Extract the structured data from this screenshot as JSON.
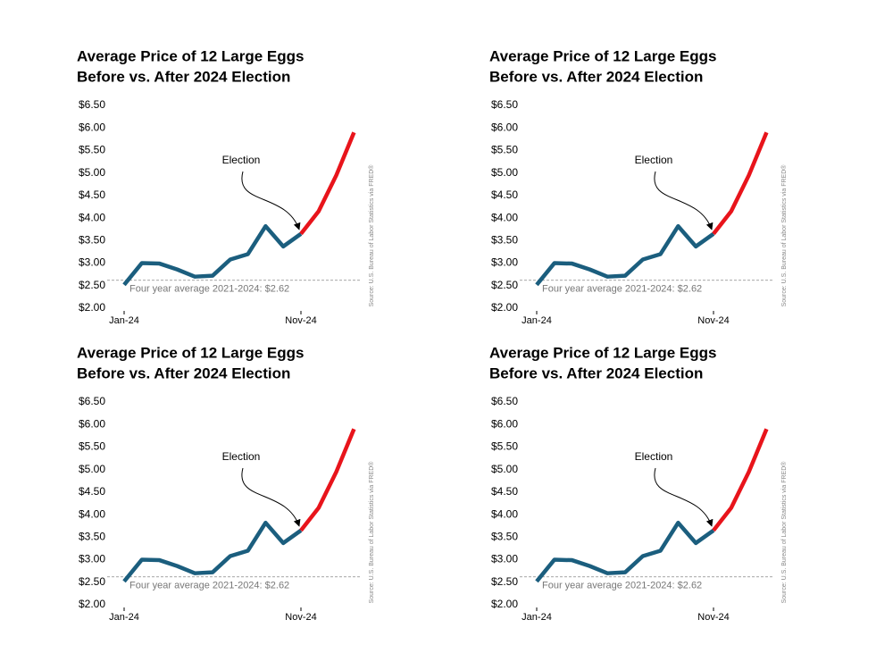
{
  "chart_data": [
    {
      "type": "line",
      "title": [
        "Average Price of 12 Large Eggs",
        "Before vs. After 2024 Election"
      ],
      "categories": [
        "Jan-24",
        null,
        null,
        null,
        null,
        null,
        null,
        null,
        null,
        null,
        "Nov-24",
        null,
        null,
        null
      ],
      "series": [
        {
          "color": "#1b5e7e",
          "values": [
            2.52,
            3.0,
            2.99,
            2.86,
            2.7,
            2.72,
            3.08,
            3.2,
            3.82,
            3.37,
            3.65,
            null,
            null,
            null
          ]
        },
        {
          "color": "#e8141b",
          "values": [
            null,
            null,
            null,
            null,
            null,
            null,
            null,
            null,
            null,
            null,
            3.65,
            4.15,
            4.95,
            5.9
          ]
        }
      ],
      "ylim": [
        2,
        6.5
      ],
      "yticks": [
        {
          "value": 2,
          "label": "$2.00"
        },
        {
          "value": 2.5,
          "label": "$2.50"
        },
        {
          "value": 3,
          "label": "$3.00"
        },
        {
          "value": 3.5,
          "label": "$3.50"
        },
        {
          "value": 4,
          "label": "$4.00"
        },
        {
          "value": 4.5,
          "label": "$4.50"
        },
        {
          "value": 5,
          "label": "$5.00"
        },
        {
          "value": 5.5,
          "label": "$5.50"
        },
        {
          "value": 6,
          "label": "$6.00"
        },
        {
          "value": 6.5,
          "label": "$6.50"
        }
      ],
      "reference_line": {
        "value": 2.62,
        "label": "Four year average 2021-2024: $2.62"
      },
      "annotation": "Election",
      "source": "Source: U.S. Bureau of Labor Statistics via FRED®"
    },
    {
      "type": "line",
      "title": [
        "Average Price of 12 Large Eggs",
        "Before vs. After 2024 Election"
      ],
      "categories": [
        "Jan-24",
        null,
        null,
        null,
        null,
        null,
        null,
        null,
        null,
        null,
        "Nov-24",
        null,
        null,
        null
      ],
      "series": [
        {
          "color": "#1b5e7e",
          "values": [
            2.52,
            3.0,
            2.99,
            2.86,
            2.7,
            2.72,
            3.08,
            3.2,
            3.82,
            3.37,
            3.65,
            null,
            null,
            null
          ]
        },
        {
          "color": "#e8141b",
          "values": [
            null,
            null,
            null,
            null,
            null,
            null,
            null,
            null,
            null,
            null,
            3.65,
            4.15,
            4.95,
            5.9
          ]
        }
      ],
      "ylim": [
        2,
        6.5
      ],
      "yticks": [
        {
          "value": 2,
          "label": "$2.00"
        },
        {
          "value": 2.5,
          "label": "$2.50"
        },
        {
          "value": 3,
          "label": "$3.00"
        },
        {
          "value": 3.5,
          "label": "$3.50"
        },
        {
          "value": 4,
          "label": "$4.00"
        },
        {
          "value": 4.5,
          "label": "$4.50"
        },
        {
          "value": 5,
          "label": "$5.00"
        },
        {
          "value": 5.5,
          "label": "$5.50"
        },
        {
          "value": 6,
          "label": "$6.00"
        },
        {
          "value": 6.5,
          "label": "$6.50"
        }
      ],
      "reference_line": {
        "value": 2.62,
        "label": "Four year average 2021-2024: $2.62"
      },
      "annotation": "Election",
      "source": "Source: U.S. Bureau of Labor Statistics via FRED®"
    },
    {
      "type": "line",
      "title": [
        "Average Price of 12 Large Eggs",
        "Before vs. After 2024 Election"
      ],
      "categories": [
        "Jan-24",
        null,
        null,
        null,
        null,
        null,
        null,
        null,
        null,
        null,
        "Nov-24",
        null,
        null,
        null
      ],
      "series": [
        {
          "color": "#1b5e7e",
          "values": [
            2.52,
            3.0,
            2.99,
            2.86,
            2.7,
            2.72,
            3.08,
            3.2,
            3.82,
            3.37,
            3.65,
            null,
            null,
            null
          ]
        },
        {
          "color": "#e8141b",
          "values": [
            null,
            null,
            null,
            null,
            null,
            null,
            null,
            null,
            null,
            null,
            3.65,
            4.15,
            4.95,
            5.9
          ]
        }
      ],
      "ylim": [
        2,
        6.5
      ],
      "yticks": [
        {
          "value": 2,
          "label": "$2.00"
        },
        {
          "value": 2.5,
          "label": "$2.50"
        },
        {
          "value": 3,
          "label": "$3.00"
        },
        {
          "value": 3.5,
          "label": "$3.50"
        },
        {
          "value": 4,
          "label": "$4.00"
        },
        {
          "value": 4.5,
          "label": "$4.50"
        },
        {
          "value": 5,
          "label": "$5.00"
        },
        {
          "value": 5.5,
          "label": "$5.50"
        },
        {
          "value": 6,
          "label": "$6.00"
        },
        {
          "value": 6.5,
          "label": "$6.50"
        }
      ],
      "reference_line": {
        "value": 2.62,
        "label": "Four year average 2021-2024: $2.62"
      },
      "annotation": "Election",
      "source": "Source: U.S. Bureau of Labor Statistics via FRED®"
    },
    {
      "type": "line",
      "title": [
        "Average Price of 12 Large Eggs",
        "Before vs. After 2024 Election"
      ],
      "categories": [
        "Jan-24",
        null,
        null,
        null,
        null,
        null,
        null,
        null,
        null,
        null,
        "Nov-24",
        null,
        null,
        null
      ],
      "series": [
        {
          "color": "#1b5e7e",
          "values": [
            2.52,
            3.0,
            2.99,
            2.86,
            2.7,
            2.72,
            3.08,
            3.2,
            3.82,
            3.37,
            3.65,
            null,
            null,
            null
          ]
        },
        {
          "color": "#e8141b",
          "values": [
            null,
            null,
            null,
            null,
            null,
            null,
            null,
            null,
            null,
            null,
            3.65,
            4.15,
            4.95,
            5.9
          ]
        }
      ],
      "ylim": [
        2,
        6.5
      ],
      "yticks": [
        {
          "value": 2,
          "label": "$2.00"
        },
        {
          "value": 2.5,
          "label": "$2.50"
        },
        {
          "value": 3,
          "label": "$3.00"
        },
        {
          "value": 3.5,
          "label": "$3.50"
        },
        {
          "value": 4,
          "label": "$4.00"
        },
        {
          "value": 4.5,
          "label": "$4.50"
        },
        {
          "value": 5,
          "label": "$5.00"
        },
        {
          "value": 5.5,
          "label": "$5.50"
        },
        {
          "value": 6,
          "label": "$6.00"
        },
        {
          "value": 6.5,
          "label": "$6.50"
        }
      ],
      "reference_line": {
        "value": 2.62,
        "label": "Four year average 2021-2024: $2.62"
      },
      "annotation": "Election",
      "source": "Source: U.S. Bureau of Labor Statistics via FRED®"
    }
  ]
}
